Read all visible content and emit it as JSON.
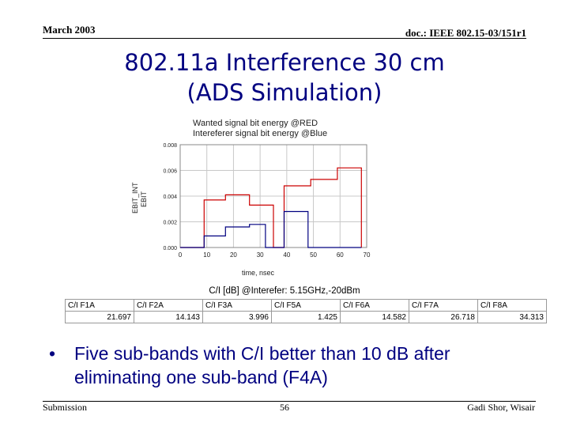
{
  "header": {
    "date": "March 2003",
    "doc": "doc.: IEEE 802.15-03/151r1"
  },
  "title": {
    "line1": "802.11a Interference   30 cm",
    "line2": "(ADS Simulation)"
  },
  "chart_legend": {
    "line1": "Wanted signal bit energy @RED",
    "line2": "Intereferer signal bit energy @Blue"
  },
  "chart_data": {
    "type": "line",
    "xlabel": "time, nsec",
    "ylabel_series": [
      "EBIT_INT",
      "EBIT"
    ],
    "xlim": [
      0,
      70
    ],
    "ylim": [
      0.0,
      0.008
    ],
    "x_ticks": [
      "0",
      "10",
      "20",
      "30",
      "40",
      "50",
      "60",
      "70"
    ],
    "y_ticks": [
      "0.000",
      "0.002",
      "0.004",
      "0.006",
      "0.008"
    ],
    "series": [
      {
        "name": "EBIT",
        "color": "#cc0000",
        "x": [
          0,
          9,
          9,
          17,
          17,
          26,
          26,
          35,
          35,
          39,
          39,
          49,
          49,
          59,
          59,
          68,
          68
        ],
        "y": [
          0,
          0,
          0.0037,
          0.0037,
          0.0041,
          0.0041,
          0.0033,
          0.0033,
          0,
          0,
          0.0048,
          0.0048,
          0.0053,
          0.0053,
          0.0062,
          0.0062,
          0
        ]
      },
      {
        "name": "EBIT_INT",
        "color": "#000080",
        "x": [
          0,
          9,
          9,
          17,
          17,
          26,
          26,
          32,
          32,
          39,
          39,
          48,
          48,
          68
        ],
        "y": [
          0,
          0,
          0.0009,
          0.0009,
          0.0016,
          0.0016,
          0.0018,
          0.0018,
          0,
          0,
          0.0028,
          0.0028,
          0,
          0
        ]
      }
    ]
  },
  "table": {
    "title": "C/I [dB] @Interefer: 5.15GHz,-20dBm",
    "columns": [
      {
        "name": "C/I F1A",
        "value": "21.697"
      },
      {
        "name": "C/I F2A",
        "value": "14.143"
      },
      {
        "name": "C/I F3A",
        "value": "3.996"
      },
      {
        "name": "C/I F5A",
        "value": "1.425"
      },
      {
        "name": "C/I F6A",
        "value": "14.582"
      },
      {
        "name": "C/I F7A",
        "value": "26.718"
      },
      {
        "name": "C/I F8A",
        "value": "34.313"
      }
    ]
  },
  "bullet": {
    "symbol": "•",
    "text": "Five sub-bands with C/I better than 10 dB after eliminating one sub-band (F4A)"
  },
  "footer": {
    "left": "Submission",
    "page": "56",
    "right": "Gadi Shor, Wisair"
  },
  "colors": {
    "title": "#000080",
    "bullet": "#000080",
    "wanted": "#cc0000",
    "interferer": "#000080"
  }
}
